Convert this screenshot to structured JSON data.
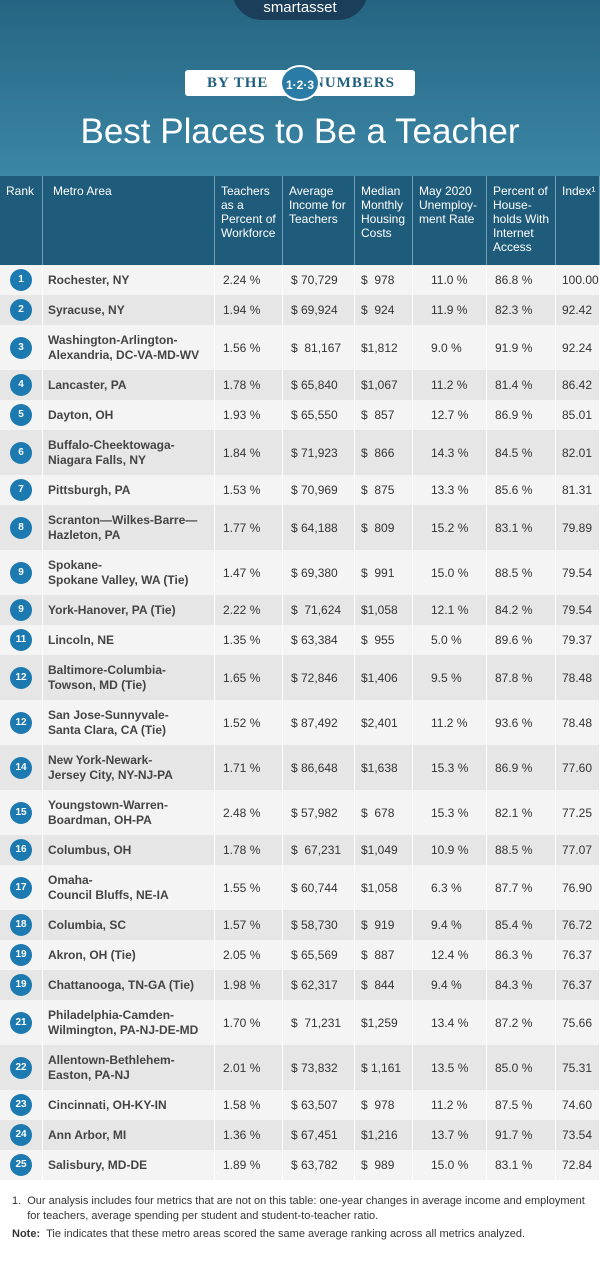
{
  "header": {
    "logo": "smartasset",
    "banner": [
      "BY THE",
      "1·2·3",
      "NUMBERS"
    ],
    "title": "Best Places to Be a Teacher"
  },
  "table": {
    "columns": [
      [
        "Rank"
      ],
      [
        "Metro Area"
      ],
      [
        "Teachers",
        "as a",
        "Percent of",
        "Workforce"
      ],
      [
        "Average",
        "Income for",
        "Teachers"
      ],
      [
        "Median",
        "Monthly",
        "Housing",
        "Costs"
      ],
      [
        "May 2020",
        "Unemploy-",
        "ment Rate"
      ],
      [
        "Percent of",
        "House-",
        "holds With",
        "Internet",
        "Access"
      ],
      [
        "Index¹"
      ]
    ],
    "rows": [
      [
        "1",
        [
          "Rochester, NY"
        ],
        "2.24 %",
        "$ 70,729",
        "$  978",
        "11.0 %",
        "86.8 %",
        "100.00"
      ],
      [
        "2",
        [
          "Syracuse, NY"
        ],
        "1.94 %",
        "$ 69,924",
        "$  924",
        "11.9 %",
        "82.3 %",
        "92.42"
      ],
      [
        "3",
        [
          "Washington-Arlington-",
          "Alexandria, DC-VA-MD-WV"
        ],
        "1.56 %",
        "$  81,167",
        "$1,812",
        "9.0 %",
        "91.9 %",
        "92.24"
      ],
      [
        "4",
        [
          "Lancaster, PA"
        ],
        "1.78 %",
        "$ 65,840",
        "$1,067",
        "11.2 %",
        "81.4 %",
        "86.42"
      ],
      [
        "5",
        [
          "Dayton, OH"
        ],
        "1.93 %",
        "$ 65,550",
        "$  857",
        "12.7 %",
        "86.9 %",
        "85.01"
      ],
      [
        "6",
        [
          "Buffalo-Cheektowaga-",
          "Niagara Falls, NY"
        ],
        "1.84 %",
        "$ 71,923",
        "$  866",
        "14.3 %",
        "84.5 %",
        "82.01"
      ],
      [
        "7",
        [
          "Pittsburgh, PA"
        ],
        "1.53 %",
        "$ 70,969",
        "$  875",
        "13.3 %",
        "85.6 %",
        "81.31"
      ],
      [
        "8",
        [
          "Scranton—Wilkes-Barre—",
          "Hazleton, PA"
        ],
        "1.77 %",
        "$ 64,188",
        "$  809",
        "15.2 %",
        "83.1 %",
        "79.89"
      ],
      [
        "9",
        [
          "Spokane-",
          "Spokane Valley, WA (Tie)"
        ],
        "1.47 %",
        "$ 69,380",
        "$  991",
        "15.0 %",
        "88.5 %",
        "79.54"
      ],
      [
        "9",
        [
          "York-Hanover, PA (Tie)"
        ],
        "2.22 %",
        "$  71,624",
        "$1,058",
        "12.1 %",
        "84.2 %",
        "79.54"
      ],
      [
        "11",
        [
          "Lincoln, NE"
        ],
        "1.35 %",
        "$ 63,384",
        "$  955",
        "5.0 %",
        "89.6 %",
        "79.37"
      ],
      [
        "12",
        [
          "Baltimore-Columbia-",
          "Towson, MD (Tie)"
        ],
        "1.65 %",
        "$ 72,846",
        "$1,406",
        "9.5 %",
        "87.8 %",
        "78.48"
      ],
      [
        "12",
        [
          "San Jose-Sunnyvale-",
          "Santa Clara, CA (Tie)"
        ],
        "1.52 %",
        "$ 87,492",
        "$2,401",
        "11.2 %",
        "93.6 %",
        "78.48"
      ],
      [
        "14",
        [
          "New York-Newark-",
          "Jersey City, NY-NJ-PA"
        ],
        "1.71 %",
        "$ 86,648",
        "$1,638",
        "15.3 %",
        "86.9 %",
        "77.60"
      ],
      [
        "15",
        [
          "Youngstown-Warren-",
          "Boardman, OH-PA"
        ],
        "2.48 %",
        "$ 57,982",
        "$  678",
        "15.3 %",
        "82.1 %",
        "77.25"
      ],
      [
        "16",
        [
          "Columbus, OH"
        ],
        "1.78 %",
        "$  67,231",
        "$1,049",
        "10.9 %",
        "88.5 %",
        "77.07"
      ],
      [
        "17",
        [
          "Omaha-",
          "Council Bluffs, NE-IA"
        ],
        "1.55 %",
        "$ 60,744",
        "$1,058",
        "6.3 %",
        "87.7 %",
        "76.90"
      ],
      [
        "18",
        [
          "Columbia, SC"
        ],
        "1.57 %",
        "$ 58,730",
        "$  919",
        "9.4 %",
        "85.4 %",
        "76.72"
      ],
      [
        "19",
        [
          "Akron, OH (Tie)"
        ],
        "2.05 %",
        "$ 65,569",
        "$  887",
        "12.4 %",
        "86.3 %",
        "76.37"
      ],
      [
        "19",
        [
          "Chattanooga, TN-GA (Tie)"
        ],
        "1.98 %",
        "$ 62,317",
        "$  844",
        "9.4 %",
        "84.3 %",
        "76.37"
      ],
      [
        "21",
        [
          "Philadelphia-Camden-",
          "Wilmington, PA-NJ-DE-MD"
        ],
        "1.70 %",
        "$  71,231",
        "$1,259",
        "13.4 %",
        "87.2 %",
        "75.66"
      ],
      [
        "22",
        [
          "Allentown-Bethlehem-",
          "Easton, PA-NJ"
        ],
        "2.01 %",
        "$ 73,832",
        "$ 1,161",
        "13.5 %",
        "85.0 %",
        "75.31"
      ],
      [
        "23",
        [
          "Cincinnati, OH-KY-IN"
        ],
        "1.58 %",
        "$ 63,507",
        "$  978",
        "11.2 %",
        "87.5 %",
        "74.60"
      ],
      [
        "24",
        [
          "Ann Arbor, MI"
        ],
        "1.36 %",
        "$ 67,451",
        "$1,216",
        "13.7 %",
        "91.7 %",
        "73.54"
      ],
      [
        "25",
        [
          "Salisbury, MD-DE"
        ],
        "1.89 %",
        "$ 63,782",
        "$  989",
        "15.0 %",
        "83.1 %",
        "72.84"
      ]
    ]
  },
  "footnotes": [
    {
      "marker": "1.",
      "text": "Our analysis includes four metrics that are not on this table: one-year changes in average income and employment for teachers, average spending per student and student-to-teacher ratio."
    },
    {
      "marker": "Note:",
      "text": "Tie indicates that these metro areas scored the same average ranking across all metrics analyzed."
    }
  ]
}
